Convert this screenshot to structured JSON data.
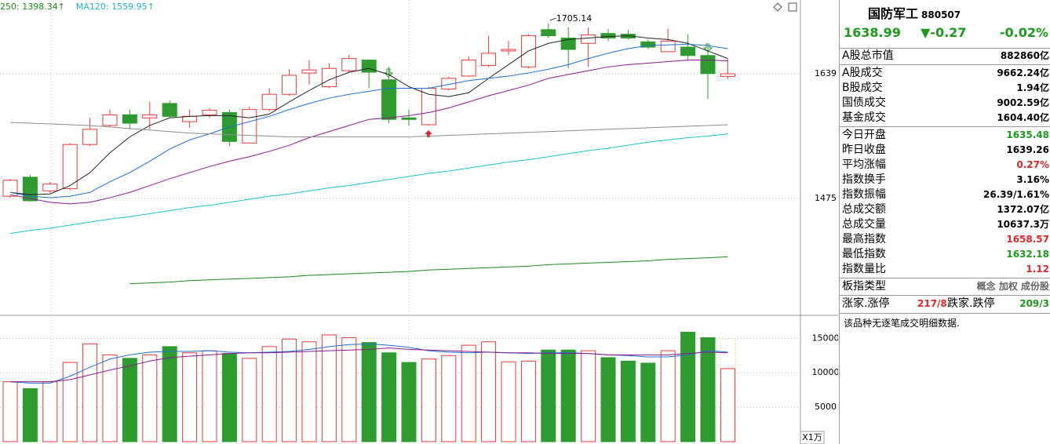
{
  "chart_data": [
    {
      "type": "candlestick",
      "legend": [
        {
          "text": "250: 1398.34↑",
          "color": "#1a8a1a"
        },
        {
          "text": "MA120: 1559.95↑",
          "color": "#19b8c4"
        }
      ],
      "max_label": "1705.14",
      "up_color": "#e8393b",
      "down_color": "#2d9b2d",
      "open": [
        1478,
        1503,
        1485,
        1488,
        1546,
        1571,
        1585,
        1581,
        1600,
        1576,
        1585,
        1588,
        1548,
        1592,
        1612,
        1640,
        1622,
        1643,
        1657,
        1631,
        1581,
        1572,
        1619,
        1636,
        1650,
        1669,
        1648,
        1697,
        1686,
        1679,
        1692,
        1691,
        1681,
        1668,
        1674,
        1663,
        1635.48
      ],
      "high": [
        1501,
        1506,
        1497,
        1548,
        1581,
        1592,
        1592,
        1602,
        1604,
        1592,
        1594,
        1592,
        1596,
        1620,
        1645,
        1657,
        1653,
        1664,
        1658,
        1648,
        1592,
        1622,
        1635,
        1662,
        1689,
        1682,
        1691,
        1705.14,
        1700,
        1700,
        1698,
        1697,
        1684,
        1698,
        1691,
        1677,
        1658.57
      ],
      "low": [
        1476,
        1471,
        1482,
        1486,
        1544,
        1569,
        1566,
        1566,
        1581,
        1568,
        1581,
        1544,
        1548,
        1590,
        1610,
        1625,
        1620,
        1641,
        1620,
        1574,
        1571,
        1571,
        1617,
        1635,
        1648,
        1664,
        1646,
        1686,
        1646,
        1648,
        1682,
        1684,
        1672,
        1668,
        1656,
        1606,
        1632.18
      ],
      "close": [
        1499,
        1472,
        1494,
        1546,
        1566,
        1585,
        1574,
        1585,
        1583,
        1583,
        1591,
        1550,
        1592,
        1612,
        1637,
        1644,
        1646,
        1659,
        1641,
        1579,
        1579,
        1620,
        1633,
        1657,
        1666,
        1671,
        1689,
        1689,
        1671,
        1690,
        1686,
        1686,
        1674,
        1682,
        1663,
        1639.26,
        1638.99
      ],
      "series": [
        {
          "color": "#222222",
          "values": [
            1483,
            1480,
            1481,
            1492,
            1509,
            1535,
            1556,
            1571,
            1581,
            1583,
            1584,
            1584,
            1581,
            1586,
            1602,
            1617,
            1631,
            1641,
            1646,
            1638,
            1622,
            1612,
            1609,
            1614,
            1633,
            1651,
            1669,
            1679,
            1684,
            1686,
            1688,
            1689,
            1686,
            1684,
            1679,
            1669,
            1659
          ]
        },
        {
          "color": "#1f6fd0",
          "values": [
            1483,
            1478,
            1476,
            1478,
            1483,
            1497,
            1509,
            1524,
            1540,
            1552,
            1560,
            1569,
            1576,
            1583,
            1592,
            1600,
            1607,
            1612,
            1616,
            1620,
            1620,
            1620,
            1625,
            1630,
            1633,
            1636,
            1640,
            1645,
            1651,
            1659,
            1666,
            1672,
            1676,
            1677,
            1678,
            1676,
            1672
          ]
        },
        {
          "color": "#8a1a8a",
          "values": [
            1480,
            1475,
            1470,
            1468,
            1470,
            1476,
            1483,
            1492,
            1501,
            1509,
            1517,
            1524,
            1530,
            1537,
            1545,
            1555,
            1563,
            1571,
            1579,
            1581,
            1584,
            1588,
            1594,
            1602,
            1610,
            1617,
            1624,
            1633,
            1638,
            1643,
            1648,
            1651,
            1653,
            1655,
            1657,
            1657,
            1656
          ]
        },
        {
          "color": "#8c8c8c",
          "values": [
            1575,
            1574,
            1573,
            1572,
            1571,
            1569,
            1567,
            1565,
            1563,
            1561,
            1560,
            1559,
            1558,
            1557,
            1556,
            1556,
            1556,
            1556,
            1556,
            1556,
            1556,
            1557,
            1558,
            1559,
            1560,
            1561,
            1562,
            1563,
            1564,
            1565,
            1566,
            1567,
            1568,
            1569,
            1570,
            1571,
            1572
          ]
        },
        {
          "color": "#19c4c4",
          "values": [
            1429,
            1433,
            1436,
            1440,
            1444,
            1448,
            1451,
            1455,
            1459,
            1463,
            1466,
            1470,
            1474,
            1478,
            1481,
            1485,
            1489,
            1492,
            1496,
            1500,
            1504,
            1508,
            1511,
            1515,
            1519,
            1523,
            1526,
            1530,
            1534,
            1538,
            1541,
            1545,
            1549,
            1552,
            1555,
            1557,
            1559.95
          ]
        },
        {
          "color": "#1a8a1a",
          "values": [
            null,
            null,
            null,
            null,
            null,
            null,
            1363,
            1364,
            1365,
            1367,
            1368,
            1369,
            1370,
            1371,
            1372,
            1374,
            1375,
            1376,
            1377,
            1378,
            1379,
            1381,
            1382,
            1383,
            1384,
            1385,
            1386,
            1388,
            1389,
            1390,
            1391,
            1392,
            1393,
            1395,
            1396,
            1397,
            1398.34
          ]
        }
      ],
      "ylim": [
        1323.4,
        1736
      ],
      "yticks": [
        1639,
        1475
      ],
      "grid": true
    },
    {
      "type": "bar",
      "unit_label": "X1万",
      "values": [
        8700,
        7700,
        8700,
        11500,
        14200,
        12600,
        12100,
        12600,
        13800,
        12900,
        13200,
        12800,
        12100,
        13800,
        14900,
        14500,
        15500,
        15100,
        14400,
        12900,
        11500,
        12000,
        12500,
        14000,
        14500,
        11600,
        11700,
        13300,
        13300,
        13200,
        12200,
        11700,
        11400,
        13200,
        15900,
        15100,
        10600
      ],
      "series": [
        {
          "color": "#1f6fd0",
          "values": [
            8700,
            8500,
            8500,
            9500,
            10800,
            12000,
            12600,
            13000,
            13100,
            13100,
            13200,
            13000,
            12900,
            13000,
            13100,
            13400,
            13800,
            14100,
            14200,
            14000,
            13700,
            13200,
            13000,
            12900,
            13000,
            12900,
            12800,
            12900,
            12900,
            12800,
            12600,
            12500,
            12300,
            12300,
            12600,
            13200,
            13000
          ]
        },
        {
          "color": "#8a1a8a",
          "values": [
            8700,
            8700,
            8700,
            9000,
            9700,
            10400,
            11000,
            11700,
            12200,
            12400,
            12600,
            12800,
            12900,
            12900,
            13000,
            13100,
            13200,
            13300,
            13400,
            13600,
            13400,
            13300,
            13200,
            13100,
            13000,
            12900,
            12900,
            12800,
            12800,
            12800,
            12600,
            12600,
            12600,
            12600,
            12800,
            13000,
            12900
          ]
        }
      ],
      "ylim": [
        0,
        18000
      ],
      "yticks": [
        15000,
        10000,
        5000
      ],
      "grid": true
    }
  ],
  "panel": {
    "title": "国防军工",
    "code": "880507",
    "price": "1638.99",
    "change": "▼-0.27",
    "pct": "-0.02%",
    "groups": [
      [
        {
          "label": "A股总市值",
          "value": "882860亿",
          "color": "#000"
        }
      ],
      [
        {
          "label": "A股成交",
          "value": "9662.24亿",
          "color": "#000"
        },
        {
          "label": "B股成交",
          "value": "1.94亿",
          "color": "#000"
        },
        {
          "label": "国债成交",
          "value": "9002.59亿",
          "color": "#000"
        },
        {
          "label": "基金成交",
          "value": "1604.40亿",
          "color": "#000"
        }
      ],
      [
        {
          "label": "今日开盘",
          "value": "1635.48",
          "color": "#1a9a1a"
        },
        {
          "label": "昨日收盘",
          "value": "1639.26",
          "color": "#000"
        },
        {
          "label": "平均涨幅",
          "value": "0.27%",
          "color": "#e0262a"
        },
        {
          "label": "指数换手",
          "value": "3.16%",
          "color": "#000"
        },
        {
          "label": "指数振幅",
          "value": "26.39/1.61%",
          "color": "#000"
        },
        {
          "label": "总成交额",
          "value": "1372.07亿",
          "color": "#000"
        },
        {
          "label": "总成交量",
          "value": "10637.3万",
          "color": "#000"
        },
        {
          "label": "最高指数",
          "value": "1658.57",
          "color": "#e0262a"
        },
        {
          "label": "最低指数",
          "value": "1632.18",
          "color": "#1a9a1a"
        },
        {
          "label": "指数量比",
          "value": "1.12",
          "color": "#e0262a"
        }
      ],
      [
        {
          "label": "板指类型",
          "value": "概念 加权 成份股",
          "color": "#666"
        }
      ]
    ],
    "breadth": {
      "up_label": "涨家.涨停",
      "up_value": "217/8",
      "down_label": "跌家.跌停",
      "down_value": "209/3"
    },
    "footer": "该品种无逐笔成交明细数据."
  }
}
